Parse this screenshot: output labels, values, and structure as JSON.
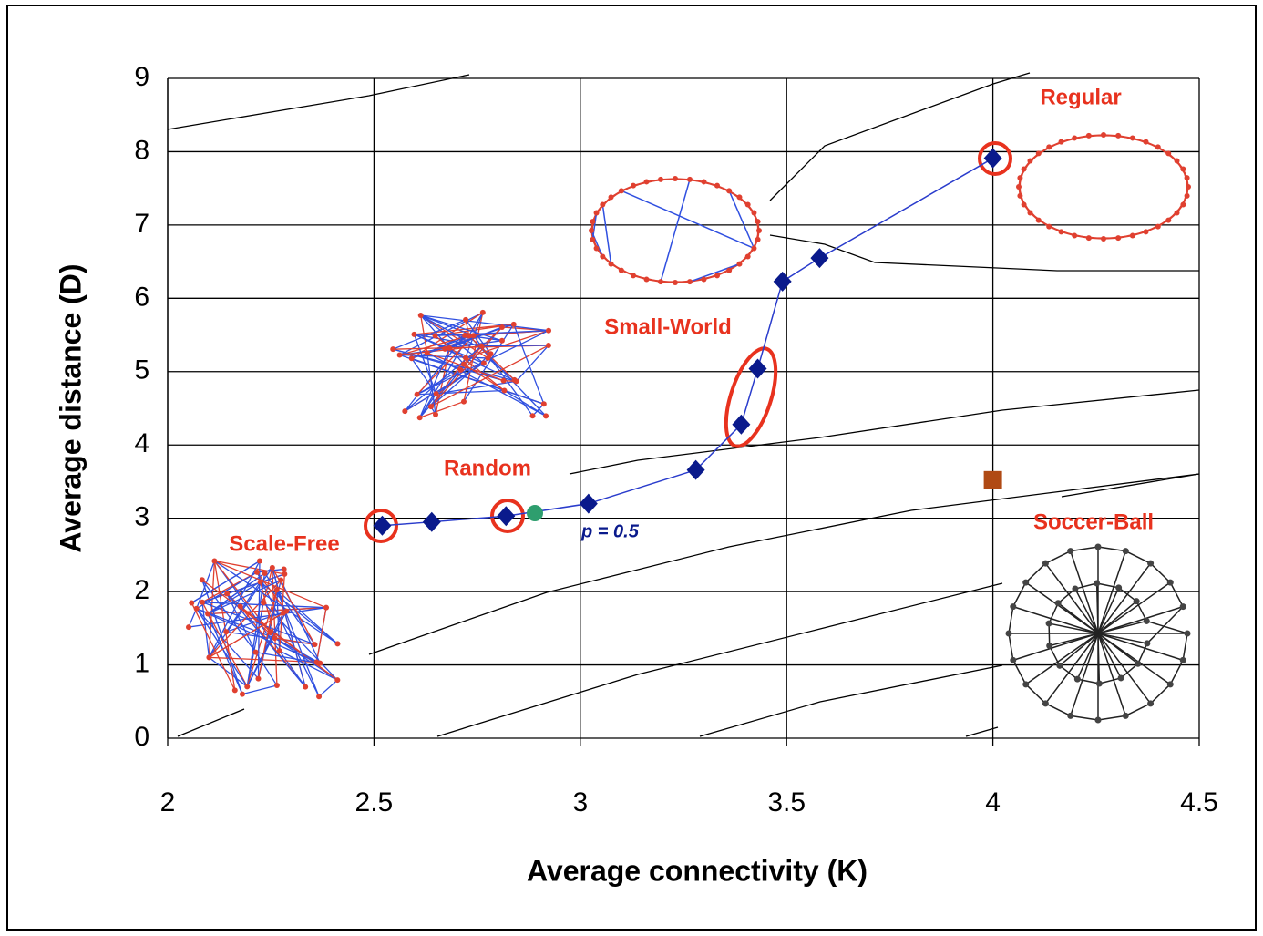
{
  "chart_data": {
    "type": "line",
    "xlabel": "Average connectivity (K)",
    "ylabel": "Average distance (D)",
    "xlim": [
      2,
      4.5
    ],
    "xticks": [
      2,
      2.5,
      3,
      3.5,
      4,
      4.5
    ],
    "ylim": [
      0,
      9
    ],
    "yticks": [
      0,
      1,
      2,
      3,
      4,
      5,
      6,
      7,
      8,
      9
    ],
    "grid": true,
    "series": [
      {
        "color": "#0a1a8c",
        "line_color": "#2a3ccc",
        "marker": "diamond",
        "x": [
          2.52,
          2.64,
          2.82,
          3.02,
          3.28,
          3.39,
          3.43,
          3.49,
          3.58,
          4.0
        ],
        "values": [
          2.9,
          2.95,
          3.03,
          3.2,
          3.66,
          4.28,
          5.04,
          6.23,
          6.55,
          7.91
        ]
      },
      {
        "color": "#2e9e6e",
        "marker": "circle",
        "x": [
          2.89
        ],
        "values": [
          3.07
        ]
      },
      {
        "color": "#b04a14",
        "marker": "square",
        "x": [
          4.0
        ],
        "values": [
          3.52
        ]
      }
    ],
    "annotations": [
      "Regular",
      "Small-World",
      "Random",
      "Scale-Free",
      "Soccer-Ball",
      "p = 0.5"
    ]
  }
}
